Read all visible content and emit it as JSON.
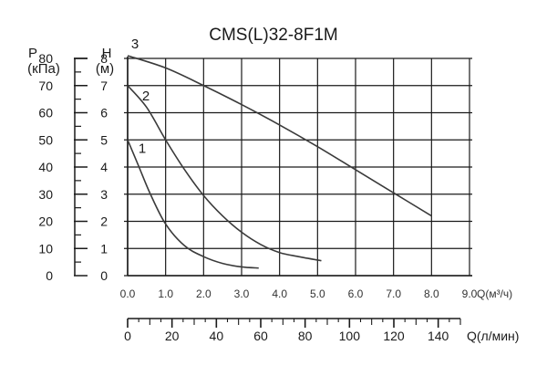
{
  "chart_data": {
    "type": "line",
    "title": "CMS(L)32-8F1M",
    "grid": true,
    "p_axis": {
      "label_top": "P",
      "label_unit": "(кПа)",
      "ticks": [
        "0",
        "10",
        "20",
        "30",
        "40",
        "50",
        "60",
        "70",
        "80"
      ],
      "ylim": [
        0,
        80
      ]
    },
    "h_axis": {
      "label_top": "H",
      "label_unit": "(м)",
      "ticks": [
        "0",
        "1",
        "2",
        "3",
        "4",
        "5",
        "6",
        "7",
        "8"
      ],
      "ylim": [
        0,
        8
      ]
    },
    "x_axis_q_m3h": {
      "label": "Q(м³/ч)",
      "ticks": [
        "0.0",
        "1.0",
        "2.0",
        "3.0",
        "4.0",
        "5.0",
        "6.0",
        "7.0",
        "8.0",
        "9.0"
      ],
      "xlim": [
        0,
        9
      ]
    },
    "x_axis_q_lmin": {
      "label": "Q(л/мин)",
      "ticks": [
        "0",
        "20",
        "40",
        "60",
        "80",
        "100",
        "120",
        "140"
      ],
      "xlim": [
        0,
        150
      ]
    },
    "series": [
      {
        "name": "1",
        "x": [
          0,
          0.3,
          0.6,
          1.0,
          1.5,
          2.0,
          2.5,
          3.0,
          3.45
        ],
        "y": [
          5.0,
          4.0,
          3.0,
          1.9,
          1.1,
          0.7,
          0.45,
          0.32,
          0.28
        ]
      },
      {
        "name": "2",
        "x": [
          0,
          0.5,
          1.0,
          1.5,
          2.0,
          2.5,
          3.0,
          3.5,
          4.0,
          4.5,
          5.1
        ],
        "y": [
          7.0,
          6.2,
          5.0,
          3.9,
          2.95,
          2.2,
          1.6,
          1.15,
          0.85,
          0.7,
          0.55
        ]
      },
      {
        "name": "3",
        "x": [
          0,
          1.0,
          2.0,
          3.0,
          4.0,
          5.0,
          6.0,
          7.0,
          8.0
        ],
        "y": [
          8.1,
          7.65,
          7.0,
          6.3,
          5.55,
          4.75,
          3.9,
          3.05,
          2.2
        ]
      }
    ]
  }
}
